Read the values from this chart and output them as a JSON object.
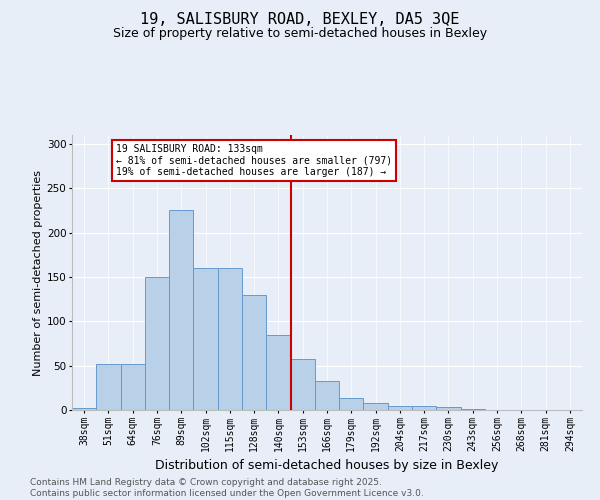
{
  "title": "19, SALISBURY ROAD, BEXLEY, DA5 3QE",
  "subtitle": "Size of property relative to semi-detached houses in Bexley",
  "xlabel": "Distribution of semi-detached houses by size in Bexley",
  "ylabel": "Number of semi-detached properties",
  "categories": [
    "38sqm",
    "51sqm",
    "64sqm",
    "76sqm",
    "89sqm",
    "102sqm",
    "115sqm",
    "128sqm",
    "140sqm",
    "153sqm",
    "166sqm",
    "179sqm",
    "192sqm",
    "204sqm",
    "217sqm",
    "230sqm",
    "243sqm",
    "256sqm",
    "268sqm",
    "281sqm",
    "294sqm"
  ],
  "values": [
    2,
    52,
    52,
    150,
    225,
    160,
    160,
    130,
    85,
    58,
    33,
    14,
    8,
    5,
    5,
    3,
    1,
    0,
    0,
    0,
    0
  ],
  "bar_color": "#b8d0e8",
  "bar_edge_color": "#6699cc",
  "vline_x": 8.5,
  "vline_color": "#cc0000",
  "annotation_text": "19 SALISBURY ROAD: 133sqm\n← 81% of semi-detached houses are smaller (797)\n19% of semi-detached houses are larger (187) →",
  "annotation_box_color": "#ffffff",
  "annotation_box_edge": "#cc0000",
  "ylim": [
    0,
    310
  ],
  "yticks": [
    0,
    50,
    100,
    150,
    200,
    250,
    300
  ],
  "footer": "Contains HM Land Registry data © Crown copyright and database right 2025.\nContains public sector information licensed under the Open Government Licence v3.0.",
  "background_color": "#e8eef8",
  "plot_bg_color": "#e8eef8",
  "title_fontsize": 11,
  "subtitle_fontsize": 9,
  "tick_fontsize": 7,
  "ylabel_fontsize": 8,
  "xlabel_fontsize": 9,
  "footer_fontsize": 6.5
}
